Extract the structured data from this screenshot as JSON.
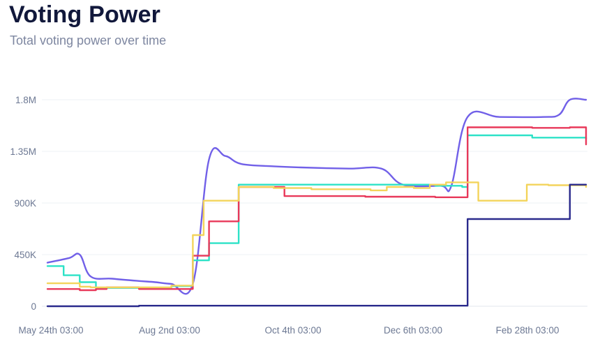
{
  "header": {
    "title": "Voting Power",
    "subtitle": "Total voting power over time"
  },
  "chart_data": {
    "type": "line",
    "title": "Voting Power",
    "subtitle": "Total voting power over time",
    "xlabel": "",
    "ylabel": "",
    "ylim": [
      0,
      1800000
    ],
    "grid": true,
    "legend": "none",
    "y_ticks": [
      {
        "value": 0,
        "label": "0"
      },
      {
        "value": 450000,
        "label": "450K"
      },
      {
        "value": 900000,
        "label": "900K"
      },
      {
        "value": 1350000,
        "label": "1.35M"
      },
      {
        "value": 1800000,
        "label": "1.8M"
      }
    ],
    "x_ticks": [
      {
        "label": "May 24th 03:00"
      },
      {
        "label": "Aug 2nd 03:00"
      },
      {
        "label": "Oct 4th 03:00"
      },
      {
        "label": "Dec 6th 03:00"
      },
      {
        "label": "Feb 28th 03:00"
      }
    ],
    "series": [
      {
        "color": "#7160e8",
        "interpolation": "smooth",
        "points": [
          [
            0,
            380000
          ],
          [
            0.04,
            420000
          ],
          [
            0.06,
            450000
          ],
          [
            0.08,
            260000
          ],
          [
            0.12,
            240000
          ],
          [
            0.17,
            220000
          ],
          [
            0.2,
            210000
          ],
          [
            0.23,
            195000
          ],
          [
            0.27,
            195000
          ],
          [
            0.3,
            1280000
          ],
          [
            0.33,
            1310000
          ],
          [
            0.36,
            1240000
          ],
          [
            0.42,
            1220000
          ],
          [
            0.47,
            1210000
          ],
          [
            0.56,
            1200000
          ],
          [
            0.62,
            1200000
          ],
          [
            0.66,
            1060000
          ],
          [
            0.73,
            1050000
          ],
          [
            0.75,
            1050000
          ],
          [
            0.78,
            1650000
          ],
          [
            0.84,
            1650000
          ],
          [
            0.92,
            1650000
          ],
          [
            0.95,
            1670000
          ],
          [
            0.97,
            1800000
          ],
          [
            1,
            1800000
          ]
        ]
      },
      {
        "color": "#2de2c7",
        "interpolation": "step",
        "points": [
          [
            0,
            350000
          ],
          [
            0.03,
            270000
          ],
          [
            0.06,
            210000
          ],
          [
            0.09,
            160000
          ],
          [
            0.1,
            160000
          ],
          [
            0.17,
            155000
          ],
          [
            0.23,
            175000
          ],
          [
            0.27,
            400000
          ],
          [
            0.3,
            550000
          ],
          [
            0.35,
            550000
          ],
          [
            0.355,
            1060000
          ],
          [
            0.72,
            1050000
          ],
          [
            0.77,
            1040000
          ],
          [
            0.78,
            1490000
          ],
          [
            0.86,
            1490000
          ],
          [
            0.9,
            1470000
          ],
          [
            1,
            1460000
          ]
        ]
      },
      {
        "color": "#e8385a",
        "interpolation": "step",
        "points": [
          [
            0,
            150000
          ],
          [
            0.06,
            140000
          ],
          [
            0.09,
            150000
          ],
          [
            0.11,
            165000
          ],
          [
            0.17,
            150000
          ],
          [
            0.27,
            440000
          ],
          [
            0.3,
            740000
          ],
          [
            0.35,
            740000
          ],
          [
            0.355,
            1040000
          ],
          [
            0.44,
            960000
          ],
          [
            0.5,
            960000
          ],
          [
            0.55,
            960000
          ],
          [
            0.59,
            955000
          ],
          [
            0.72,
            950000
          ],
          [
            0.78,
            1560000
          ],
          [
            0.86,
            1560000
          ],
          [
            0.9,
            1555000
          ],
          [
            0.97,
            1560000
          ],
          [
            1,
            1410000
          ]
        ]
      },
      {
        "color": "#f3d45b",
        "interpolation": "step",
        "points": [
          [
            0,
            200000
          ],
          [
            0.06,
            170000
          ],
          [
            0.08,
            165000
          ],
          [
            0.17,
            165000
          ],
          [
            0.23,
            180000
          ],
          [
            0.27,
            620000
          ],
          [
            0.29,
            920000
          ],
          [
            0.33,
            920000
          ],
          [
            0.355,
            1040000
          ],
          [
            0.42,
            1030000
          ],
          [
            0.49,
            1020000
          ],
          [
            0.55,
            1020000
          ],
          [
            0.6,
            1010000
          ],
          [
            0.63,
            1040000
          ],
          [
            0.68,
            1030000
          ],
          [
            0.71,
            1060000
          ],
          [
            0.74,
            1080000
          ],
          [
            0.79,
            1080000
          ],
          [
            0.8,
            920000
          ],
          [
            0.88,
            920000
          ],
          [
            0.89,
            1060000
          ],
          [
            0.93,
            1055000
          ],
          [
            1,
            1040000
          ]
        ]
      },
      {
        "color": "#2a2a8c",
        "interpolation": "step",
        "points": [
          [
            0,
            0
          ],
          [
            0.08,
            0
          ],
          [
            0.17,
            5000
          ],
          [
            0.3,
            5000
          ],
          [
            0.5,
            5000
          ],
          [
            0.73,
            5000
          ],
          [
            0.78,
            760000
          ],
          [
            0.86,
            760000
          ],
          [
            0.94,
            760000
          ],
          [
            0.97,
            1060000
          ],
          [
            1,
            1060000
          ]
        ]
      }
    ]
  }
}
